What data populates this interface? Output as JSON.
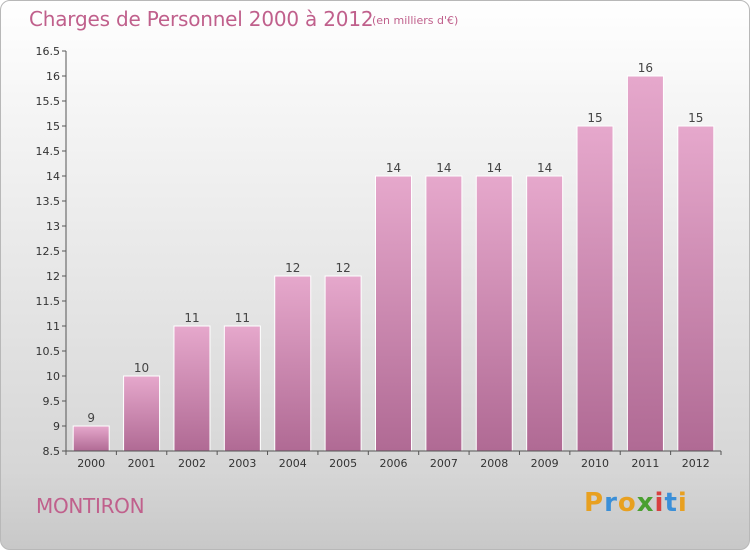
{
  "title": "Charges de Personnel 2000 à 2012",
  "subtitle": "(en milliers d'€)",
  "city": "MONTIRON",
  "logo": {
    "text": "Proxiti",
    "letters": [
      "P",
      "r",
      "o",
      "x",
      "i",
      "t",
      "i"
    ],
    "colors": [
      "#e8a020",
      "#3a8fd8",
      "#e8a020",
      "#4aa030",
      "#d84040",
      "#3a8fd8",
      "#e8a020"
    ]
  },
  "colors": {
    "bar": "#d890b8",
    "bar_light": "#e6a8cc",
    "bar_dark": "#b06a94",
    "text": "#c0608c"
  },
  "chart_data": {
    "type": "bar",
    "categories": [
      "2000",
      "2001",
      "2002",
      "2003",
      "2004",
      "2005",
      "2006",
      "2007",
      "2008",
      "2009",
      "2010",
      "2011",
      "2012"
    ],
    "values": [
      9,
      10,
      11,
      11,
      12,
      12,
      14,
      14,
      14,
      14,
      15,
      16,
      15
    ],
    "data_labels": [
      "9",
      "10",
      "11",
      "11",
      "12",
      "12",
      "14",
      "14",
      "14",
      "14",
      "15",
      "16",
      "15"
    ],
    "ylim": [
      8.5,
      16.5
    ],
    "yticks": [
      "8.5",
      "9",
      "9.5",
      "10",
      "10.5",
      "11",
      "11.5",
      "12",
      "12.5",
      "13",
      "13.5",
      "14",
      "14.5",
      "15",
      "15.5",
      "16",
      "16.5"
    ],
    "xlabel": "",
    "ylabel": "",
    "grid": false
  }
}
